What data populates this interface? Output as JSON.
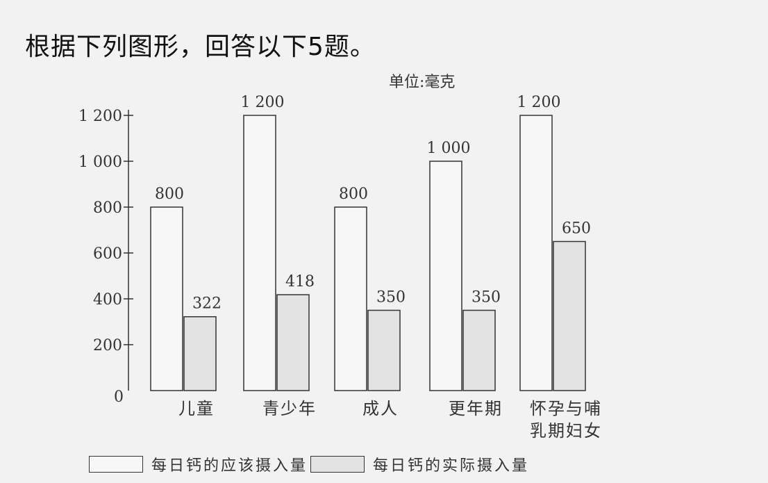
{
  "heading": "根据下列图形，回答以下5题。",
  "unit_label": "单位:毫克",
  "chart_data": {
    "type": "bar",
    "categories": [
      "儿童",
      "青少年",
      "成人",
      "更年期",
      "怀孕与哺\n乳期妇女"
    ],
    "series": [
      {
        "name": "每日钙的应该摄入量",
        "values": [
          800,
          1200,
          800,
          1000,
          1200
        ],
        "color": "#f7f7f7"
      },
      {
        "name": "每日钙的实际摄入量",
        "values": [
          322,
          418,
          350,
          350,
          650
        ],
        "color": "#e3e3e3"
      }
    ],
    "data_labels": [
      [
        "800",
        "1 200",
        "800",
        "1 000",
        "1 200"
      ],
      [
        "322",
        "418",
        "350",
        "350",
        "650"
      ]
    ],
    "yticks": [
      "0",
      "200",
      "400",
      "600",
      "800",
      "1 000",
      "1 200"
    ],
    "ytick_values": [
      0,
      200,
      400,
      600,
      800,
      1000,
      1200
    ],
    "ylim": [
      0,
      1200
    ],
    "grid": false,
    "legend_position": "bottom"
  }
}
